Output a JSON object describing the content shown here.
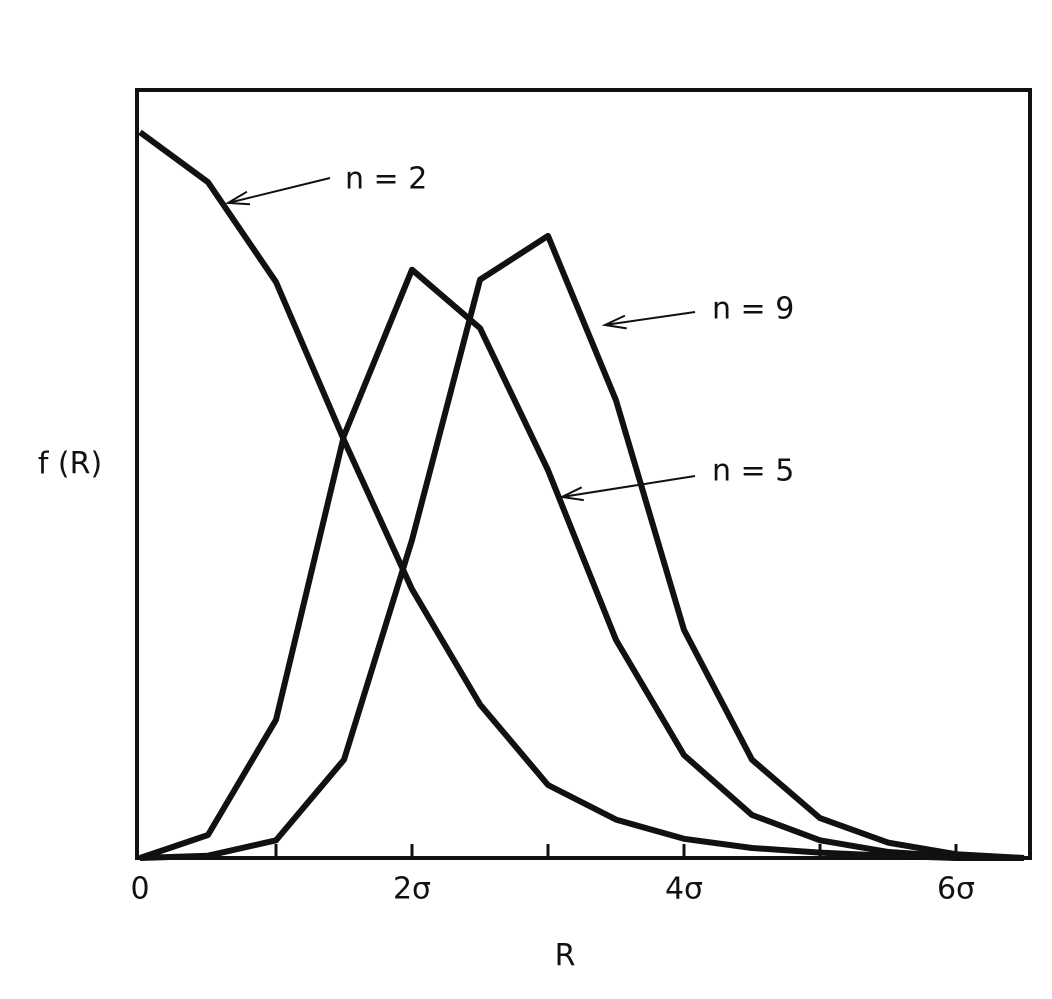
{
  "chart_data": {
    "type": "line",
    "x_label": "R",
    "y_label": "f (R)",
    "x": [
      0,
      0.5,
      1,
      1.5,
      2,
      2.5,
      3,
      3.5,
      4,
      4.5,
      5,
      5.5,
      6,
      6.5
    ],
    "series": [
      {
        "name": "n = 2",
        "color": "#111111",
        "values": [
          0.945,
          0.88,
          0.75,
          0.544,
          0.35,
          0.2,
          0.095,
          0.05,
          0.025,
          0.013,
          0.007,
          0.003,
          0,
          0
        ]
      },
      {
        "name": "n = 5",
        "color": "#111111",
        "values": [
          0,
          0.03,
          0.18,
          0.55,
          0.766,
          0.69,
          0.505,
          0.284,
          0.134,
          0.056,
          0.023,
          0.008,
          0.002,
          0
        ]
      },
      {
        "name": "n = 9",
        "color": "#111111",
        "values": [
          0,
          0.003,
          0.023,
          0.128,
          0.414,
          0.753,
          0.81,
          0.596,
          0.297,
          0.128,
          0.052,
          0.02,
          0.005,
          0
        ]
      }
    ],
    "xlim": [
      0,
      6.55
    ],
    "ylim": [
      0,
      1
    ],
    "xticks": [
      0,
      {
        "value": 2,
        "label": "2σ"
      },
      {
        "value": 4,
        "label": "4σ"
      },
      {
        "value": 6,
        "label": "6σ"
      }
    ],
    "xminor_ticks": [
      1,
      3,
      5
    ],
    "grid": false
  }
}
